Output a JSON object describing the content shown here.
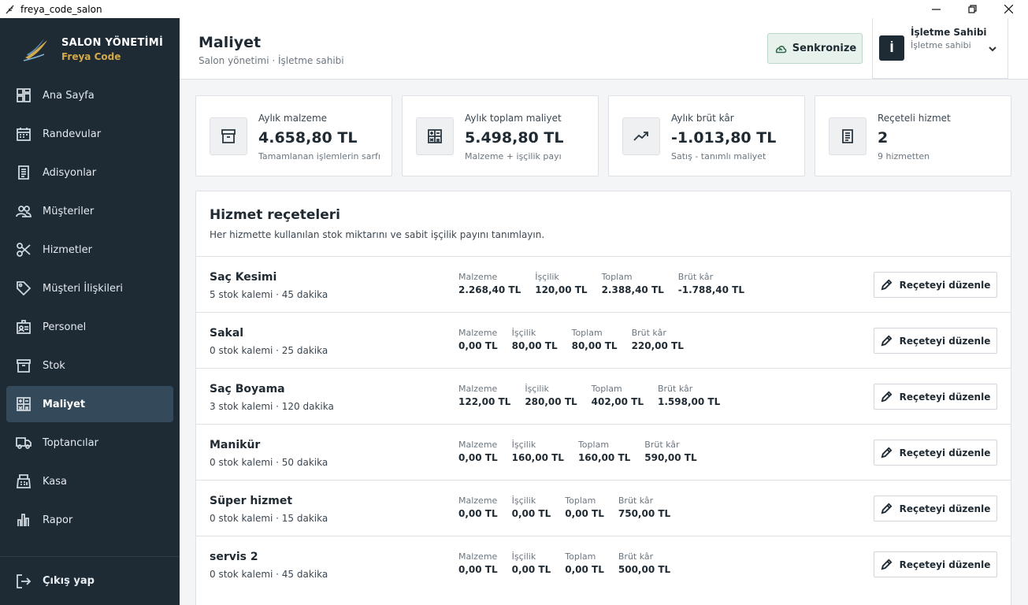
{
  "window": {
    "title": "freya_code_salon",
    "minimize": "—",
    "maximize": "❐",
    "close": "✕"
  },
  "brand": {
    "title": "SALON YÖNETİMİ",
    "subtitle": "Freya Code"
  },
  "sidebar": {
    "items": [
      {
        "label": "Ana Sayfa",
        "icon": "dashboard-icon"
      },
      {
        "label": "Randevular",
        "icon": "calendar-icon"
      },
      {
        "label": "Adisyonlar",
        "icon": "receipt-icon"
      },
      {
        "label": "Müşteriler",
        "icon": "people-icon"
      },
      {
        "label": "Hizmetler",
        "icon": "scissors-icon"
      },
      {
        "label": "Müşteri İlişkileri",
        "icon": "tag-icon"
      },
      {
        "label": "Personel",
        "icon": "badge-icon"
      },
      {
        "label": "Stok",
        "icon": "archive-icon"
      },
      {
        "label": "Maliyet",
        "icon": "calculator-icon",
        "active": true
      },
      {
        "label": "Toptancılar",
        "icon": "truck-icon"
      },
      {
        "label": "Kasa",
        "icon": "register-icon"
      },
      {
        "label": "Rapor",
        "icon": "bar-chart-icon"
      }
    ],
    "logout": "Çıkış yap"
  },
  "header": {
    "title": "Maliyet",
    "subtitle": "Salon yönetimi · İşletme sahibi",
    "sync_label": "Senkronize",
    "user": {
      "avatar": "İ",
      "name": "İşletme Sahibi",
      "role": "İşletme sahibi"
    }
  },
  "stats": [
    {
      "label": "Aylık malzeme",
      "value": "4.658,80 TL",
      "hint": "Tamamlanan işlemlerin sarfı",
      "icon": "archive-icon"
    },
    {
      "label": "Aylık toplam maliyet",
      "value": "5.498,80 TL",
      "hint": "Malzeme + işçilik payı",
      "icon": "calculator-icon"
    },
    {
      "label": "Aylık brüt kâr",
      "value": "-1.013,80 TL",
      "hint": "Satış - tanımlı maliyet",
      "icon": "trending-up-icon"
    },
    {
      "label": "Reçeteli hizmet",
      "value": "2",
      "hint": "9 hizmetten",
      "icon": "receipt-icon"
    }
  ],
  "recipes": {
    "title": "Hizmet reçeteleri",
    "description": "Her hizmette kullanılan stok miktarını ve sabit işçilik payını tanımlayın.",
    "labels": {
      "material": "Malzeme",
      "labor": "İşçilik",
      "total": "Toplam",
      "gross": "Brüt kâr"
    },
    "edit_label": "Reçeteyi düzenle",
    "rows": [
      {
        "name": "Saç Kesimi",
        "meta": "5 stok kalemi · 45 dakika",
        "material": "2.268,40 TL",
        "labor": "120,00 TL",
        "total": "2.388,40 TL",
        "gross": "-1.788,40 TL"
      },
      {
        "name": "Sakal",
        "meta": "0 stok kalemi · 25 dakika",
        "material": "0,00 TL",
        "labor": "80,00 TL",
        "total": "80,00 TL",
        "gross": "220,00 TL"
      },
      {
        "name": "Saç Boyama",
        "meta": "3 stok kalemi · 120 dakika",
        "material": "122,00 TL",
        "labor": "280,00 TL",
        "total": "402,00 TL",
        "gross": "1.598,00 TL"
      },
      {
        "name": "Manikür",
        "meta": "0 stok kalemi · 50 dakika",
        "material": "0,00 TL",
        "labor": "160,00 TL",
        "total": "160,00 TL",
        "gross": "590,00 TL"
      },
      {
        "name": "Süper hizmet",
        "meta": "0 stok kalemi · 15 dakika",
        "material": "0,00 TL",
        "labor": "0,00 TL",
        "total": "0,00 TL",
        "gross": "750,00 TL"
      },
      {
        "name": "servis 2",
        "meta": "0 stok kalemi · 45 dakika",
        "material": "0,00 TL",
        "labor": "0,00 TL",
        "total": "0,00 TL",
        "gross": "500,00 TL"
      }
    ]
  }
}
